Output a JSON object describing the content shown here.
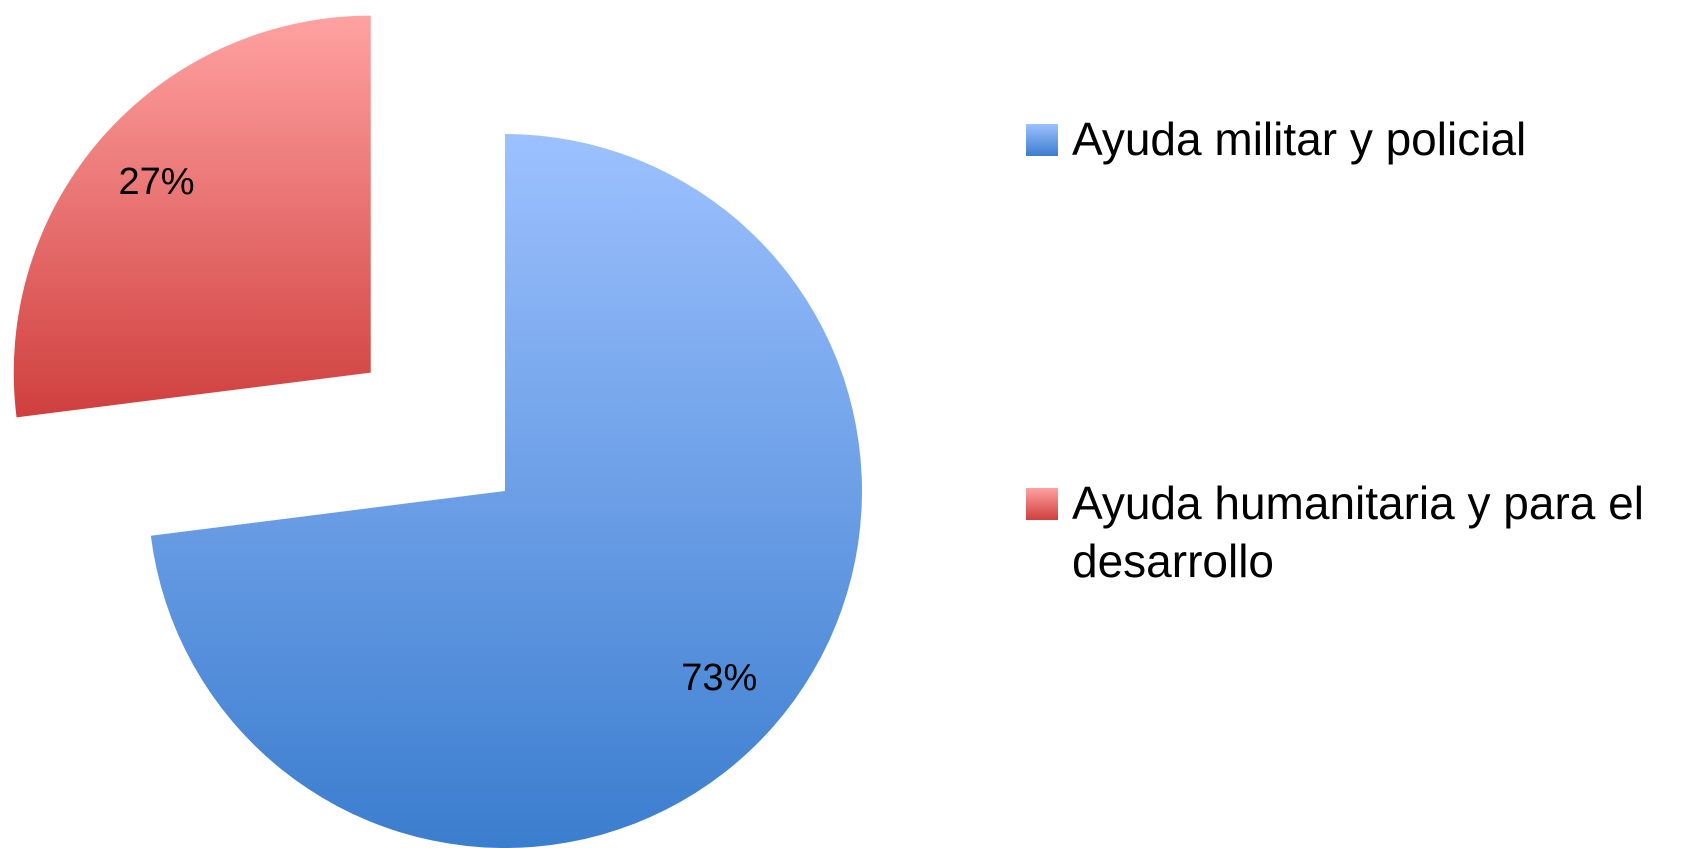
{
  "chart_data": {
    "type": "pie",
    "categories": [
      "Ayuda militar y policial",
      "Ayuda humanitaria y para el desarrollo"
    ],
    "values": [
      73,
      27
    ],
    "value_labels": [
      "73%",
      "27%"
    ],
    "colors": [
      [
        "#9dc1ff",
        "#3b7dce"
      ],
      [
        "#ffa2a1",
        "#cf3f3e"
      ]
    ],
    "exploded": [
      false,
      true
    ],
    "legend": "right"
  }
}
